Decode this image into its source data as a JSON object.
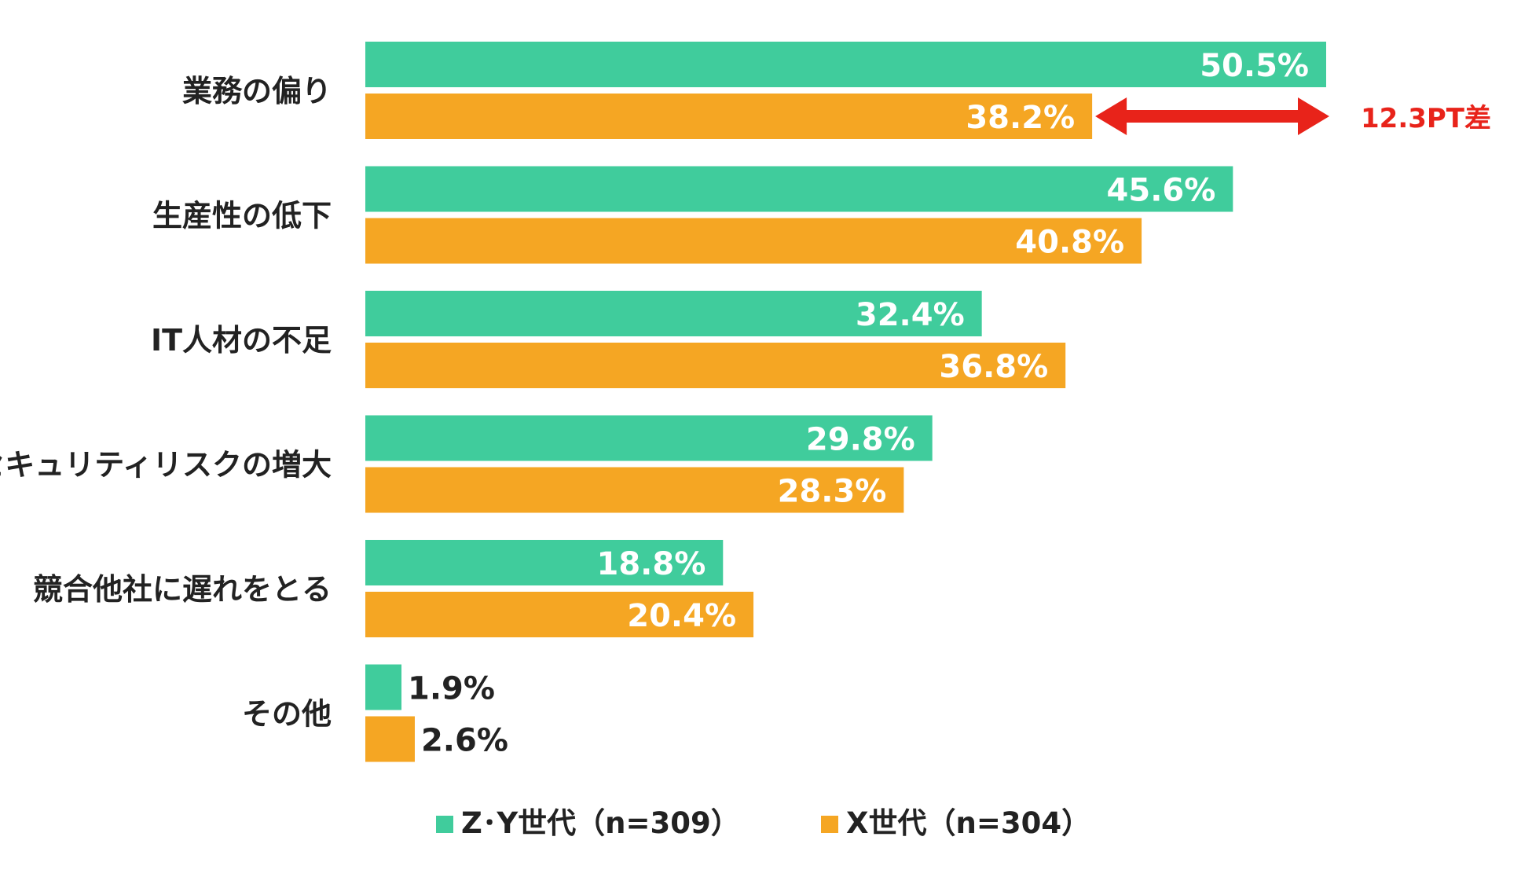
{
  "chart_data": {
    "type": "bar",
    "orientation": "horizontal",
    "categories": [
      "業務の偏り",
      "生産性の低下",
      "IT人材の不足",
      "セキュリティリスクの増大",
      "競合他社に遅れをとる",
      "その他"
    ],
    "series": [
      {
        "name": "Z･Y世代（n=309）",
        "values": [
          50.5,
          45.6,
          32.4,
          29.8,
          18.8,
          1.9
        ],
        "labels": [
          "50.5%",
          "45.6%",
          "32.4%",
          "29.8%",
          "18.8%",
          "1.9%"
        ],
        "color": "#40CC9C"
      },
      {
        "name": "X世代（n=304）",
        "values": [
          38.2,
          40.8,
          36.8,
          28.3,
          20.4,
          2.6
        ],
        "labels": [
          "38.2%",
          "40.8%",
          "36.8%",
          "28.3%",
          "20.4%",
          "2.6%"
        ],
        "color": "#F5A623"
      }
    ],
    "xlim": [
      0,
      52
    ],
    "grid": false,
    "legend_position": "bottom",
    "annotation": {
      "text": "12.3PT差",
      "category": "業務の偏り",
      "from": 38.2,
      "to": 50.5,
      "color": "#E8231A"
    }
  }
}
